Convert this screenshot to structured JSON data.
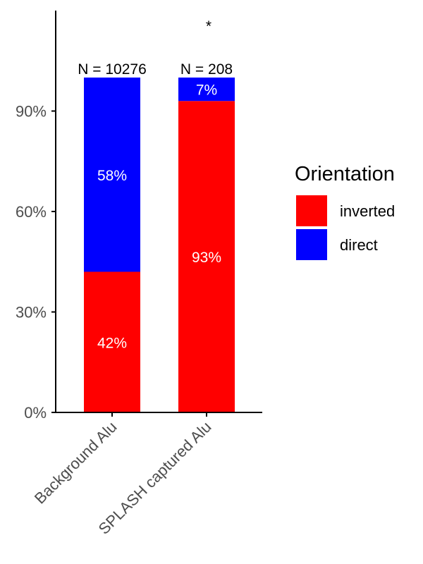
{
  "chart_data": {
    "type": "bar",
    "stacked": true,
    "categories": [
      "Background Alu",
      "SPLASH captured Alu"
    ],
    "series": [
      {
        "name": "inverted",
        "values": [
          42,
          93
        ],
        "labels": [
          "42%",
          "93%"
        ],
        "color": "#ff0000"
      },
      {
        "name": "direct",
        "values": [
          58,
          7
        ],
        "labels": [
          "58%",
          "7%"
        ],
        "color": "#0000ff"
      }
    ],
    "n_labels": [
      "N = 10276",
      "N = 208"
    ],
    "significance": [
      "",
      "*"
    ],
    "ylim": [
      0,
      120
    ],
    "yticks": [
      0,
      30,
      60,
      90
    ],
    "ytick_labels": [
      "0%",
      "30%",
      "60%",
      "90%"
    ],
    "xlabel": "",
    "ylabel": "",
    "legend": {
      "title": "Orientation",
      "placement": "right"
    },
    "grid": false
  }
}
